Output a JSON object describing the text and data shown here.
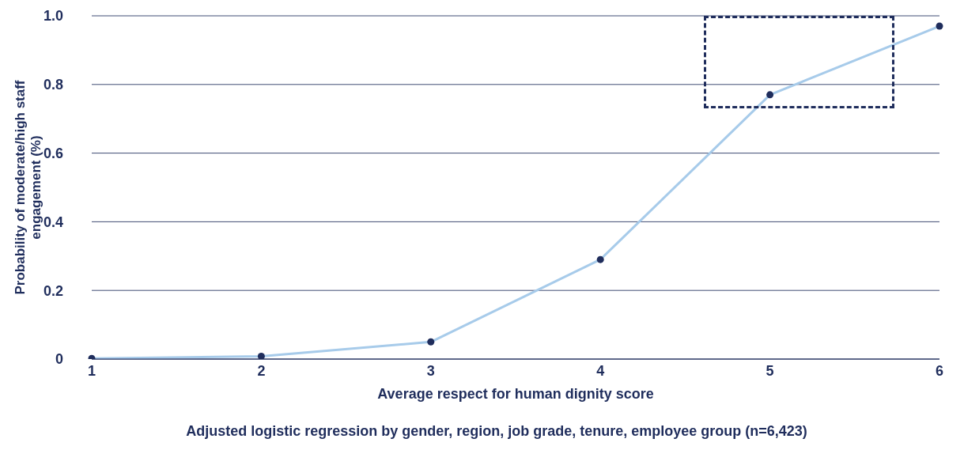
{
  "chart_data": {
    "type": "line",
    "xlabel": "Average respect for human dignity score",
    "ylabel": "Probability of moderate/high staff engagement (%)",
    "annotations": [
      "Adjusted logistic regression by gender, region, job grade, tenure, employee group (n=6,423)"
    ],
    "categories": [
      "1",
      "2",
      "3",
      "4",
      "5",
      "6"
    ],
    "series": [
      {
        "color": "#a7cbea",
        "values": [
          0.002,
          0.008,
          0.05,
          0.29,
          0.77,
          0.97
        ]
      }
    ],
    "ylim": [
      0,
      1
    ],
    "yticks": [
      0,
      0.2,
      0.4,
      0.6,
      0.8,
      {
        "value": 1,
        "label": "1.0"
      }
    ],
    "grid": "y",
    "marker": "circle",
    "line_style": "solid",
    "legend": false
  }
}
